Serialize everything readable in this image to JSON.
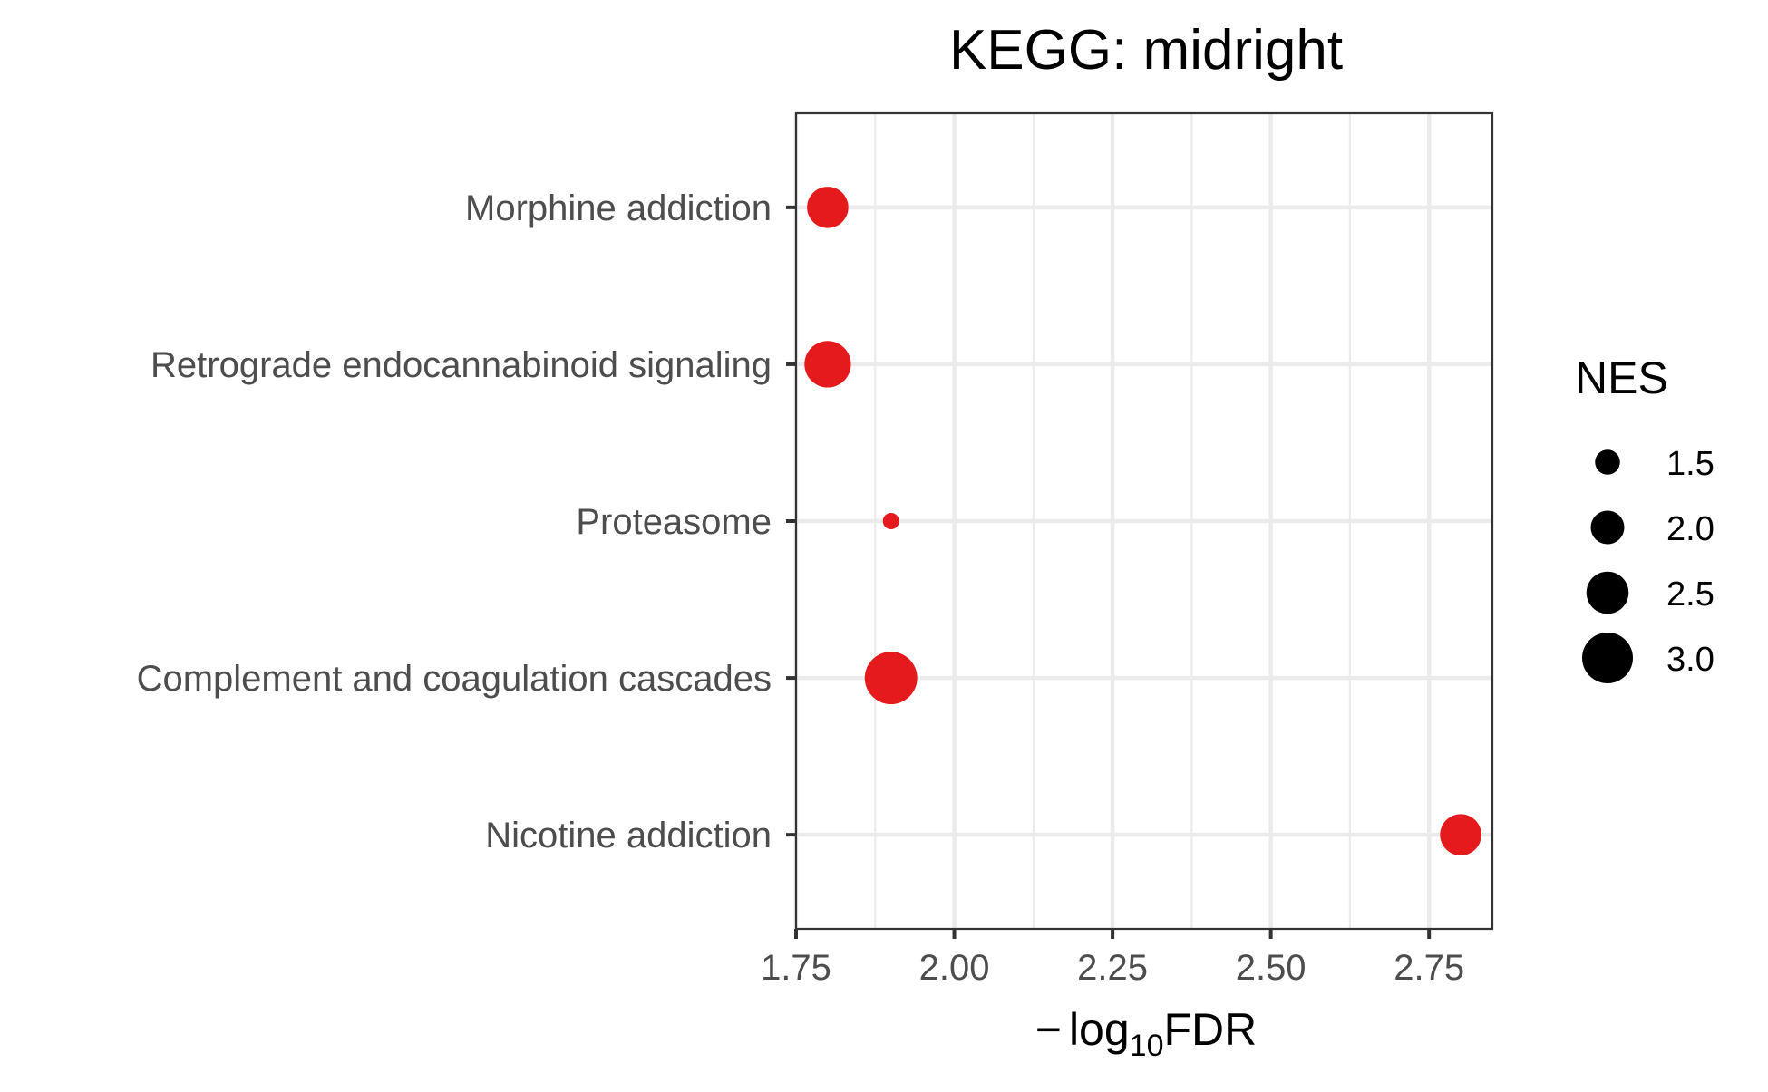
{
  "chart_data": {
    "type": "scatter",
    "title": "KEGG: midright",
    "xlabel": "log10FDR",
    "xlabel_prefix": "−",
    "xlabel_main": "log",
    "xlabel_sub": "10",
    "xlabel_tail": "FDR",
    "xlim": [
      1.75,
      2.85
    ],
    "x_ticks": [
      1.75,
      2.0,
      2.25,
      2.5,
      2.75
    ],
    "x_tick_labels": [
      "1.75",
      "2.00",
      "2.25",
      "2.50",
      "2.75"
    ],
    "categories": [
      "Morphine addiction",
      "Retrograde endocannabinoid signaling",
      "Proteasome",
      "Complement and coagulation cascades",
      "Nicotine addiction"
    ],
    "points": [
      {
        "category": "Morphine addiction",
        "x": 1.8,
        "nes": 2.45
      },
      {
        "category": "Retrograde endocannabinoid signaling",
        "x": 1.8,
        "nes": 2.75
      },
      {
        "category": "Proteasome",
        "x": 1.9,
        "nes": 1.0
      },
      {
        "category": "Complement and coagulation cascades",
        "x": 1.9,
        "nes": 3.1
      },
      {
        "category": "Nicotine addiction",
        "x": 2.8,
        "nes": 2.45
      }
    ],
    "point_color": "#e41a1c",
    "grid": true,
    "legend": {
      "title": "NES",
      "position": "right",
      "values": [
        1.5,
        2.0,
        2.5,
        3.0
      ],
      "labels": [
        "1.5",
        "2.0",
        "2.5",
        "3.0"
      ],
      "color": "#000000"
    }
  }
}
